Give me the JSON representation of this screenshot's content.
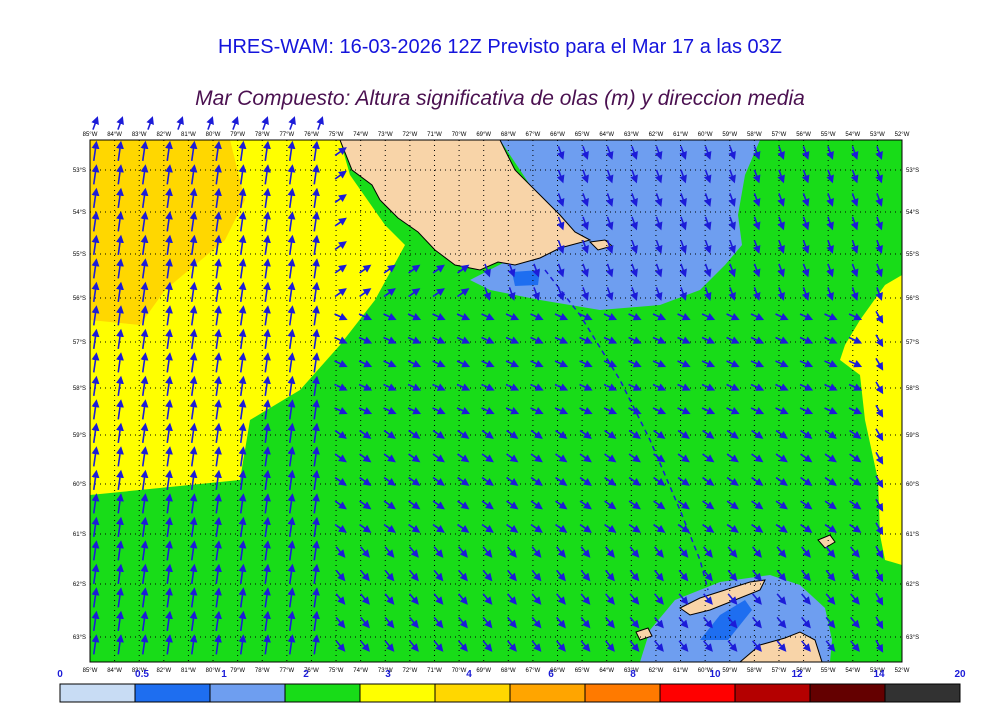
{
  "title": "HRES-WAM: 16-03-2026 12Z Previsto para el Mar 17 a las 03Z",
  "subtitle": "Mar Compuesto: Altura significativa de olas (m) y direccion media",
  "map": {
    "lon_labels": [
      "85°W",
      "84°W",
      "83°W",
      "82°W",
      "81°W",
      "80°W",
      "79°W",
      "78°W",
      "77°W",
      "76°W",
      "75°W",
      "74°W",
      "73°W",
      "72°W",
      "71°W",
      "70°W",
      "69°W",
      "68°W",
      "67°W",
      "66°W",
      "65°W",
      "64°W",
      "63°W",
      "62°W",
      "61°W",
      "60°W",
      "59°W",
      "58°W",
      "57°W",
      "56°W",
      "55°W",
      "54°W",
      "53°W",
      "52°W"
    ],
    "lat_labels": [
      "53°S",
      "54°S",
      "55°S",
      "56°S",
      "57°S",
      "58°S",
      "59°S",
      "60°S",
      "61°S",
      "62°S",
      "63°S"
    ],
    "colors": {
      "land": "#f8d4a8",
      "arrow": "#1c1cd8",
      "coast": "#000000"
    }
  },
  "colorbar": {
    "tick_labels": [
      "0",
      "0.5",
      "1",
      "2",
      "3",
      "4",
      "6",
      "8",
      "10",
      "12",
      "14",
      "20"
    ],
    "bins": [
      {
        "color": "#c8dcf4"
      },
      {
        "color": "#1e6ef0"
      },
      {
        "color": "#6e9ef0"
      },
      {
        "color": "#18dc18"
      },
      {
        "color": "#ffff00"
      },
      {
        "color": "#ffd700"
      },
      {
        "color": "#ffa500"
      },
      {
        "color": "#ff7a00"
      },
      {
        "color": "#ff0000"
      },
      {
        "color": "#b40000"
      },
      {
        "color": "#640000"
      },
      {
        "color": "#323232"
      }
    ]
  }
}
